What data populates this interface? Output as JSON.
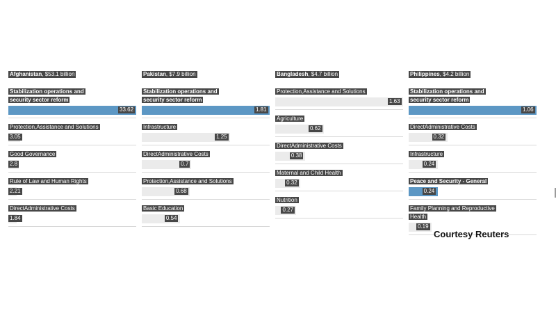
{
  "chart_data": [
    {
      "type": "bar",
      "title": "Afghanistan",
      "subtitle": "$53.1 billion",
      "max": 33.62,
      "categories": [
        "Stabilization operations and security sector reform",
        "Protection,Assistance and Solutions",
        "Good Governance",
        "Rule of Law and Human Rights",
        "DirectAdministrative Costs"
      ],
      "values": [
        33.62,
        3.05,
        2.8,
        2.21,
        1.84
      ],
      "value_labels": [
        "33.62",
        "3.05",
        "2.8",
        "2.21",
        "1.84"
      ],
      "highlight": [
        true,
        false,
        false,
        false,
        false
      ],
      "bold_label": [
        true,
        false,
        false,
        false,
        false
      ]
    },
    {
      "type": "bar",
      "title": "Pakistan",
      "subtitle": "$7.9 billion",
      "max": 1.81,
      "categories": [
        "Stabilization operations and security sector reform",
        "Infrastructure",
        "DirectAdministrative Costs",
        "Protection,Assistance and Solutions",
        "Basic Education"
      ],
      "values": [
        1.81,
        1.25,
        0.7,
        0.68,
        0.54
      ],
      "value_labels": [
        "1.81",
        "1.25",
        "0.7",
        "0.68",
        "0.54"
      ],
      "highlight": [
        true,
        false,
        false,
        false,
        false
      ],
      "bold_label": [
        true,
        false,
        false,
        false,
        false
      ]
    },
    {
      "type": "bar",
      "title": "Bangladesh",
      "subtitle": "$4.7 billion",
      "max": 1.63,
      "categories": [
        "Protection,Assistance and Solutions",
        "Agriculture",
        "DirectAdministrative Costs",
        "Maternal and Child Health",
        "Nutrition"
      ],
      "values": [
        1.63,
        0.62,
        0.38,
        0.32,
        0.27
      ],
      "value_labels": [
        "1.63",
        "0.62",
        "0.38",
        "0.32",
        "0.27"
      ],
      "highlight": [
        false,
        false,
        false,
        false,
        false
      ],
      "bold_label": [
        false,
        false,
        false,
        false,
        false
      ]
    },
    {
      "type": "bar",
      "title": "Philippines",
      "subtitle": "$4.2 billion",
      "max": 1.06,
      "categories": [
        "Stabilization operations and security sector reform",
        "DirectAdministrative Costs",
        "Infrastructure",
        "Peace and Security - General",
        "Family Planning and Reproductive Health"
      ],
      "values": [
        1.06,
        0.32,
        0.24,
        0.24,
        0.19
      ],
      "value_labels": [
        "1.06",
        "0.32",
        "0.24",
        "0.24",
        "0.19"
      ],
      "highlight": [
        true,
        false,
        false,
        true,
        false
      ],
      "bold_label": [
        true,
        false,
        false,
        true,
        false
      ]
    }
  ],
  "footer": {
    "courtesy": "Courtesy Reuters"
  },
  "colors": {
    "highlight": "#5c97c4",
    "bar": "#ebebeb",
    "label_bg": "#474747",
    "label_text": "#ffffff"
  }
}
